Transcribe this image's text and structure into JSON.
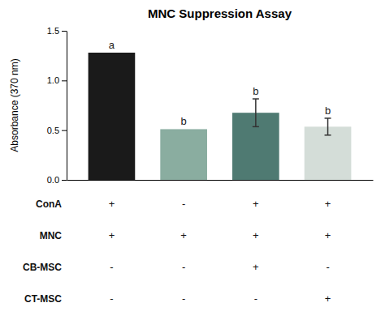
{
  "chart_data": {
    "type": "bar",
    "title": "MNC Suppression Assay",
    "ylabel": "Absorbance (370 nm)",
    "categories": [
      null,
      null,
      null,
      null
    ],
    "values": [
      1.28,
      0.51,
      0.675,
      0.535
    ],
    "errors": [
      0.0,
      0.0,
      0.14,
      0.085
    ],
    "colors": [
      "#1a1a1a",
      "#8aada0",
      "#4f7a72",
      "#d4ddd8"
    ],
    "annotations": [
      "a",
      "b",
      "b",
      "b"
    ],
    "ylim": [
      0,
      1.5
    ],
    "yticks": [
      {
        "value": 0.0,
        "label": "0.0"
      },
      0.5,
      {
        "value": 1.0,
        "label": "1.0"
      },
      1.5
    ],
    "grid": false,
    "table": {
      "rows": [
        "ConA",
        "MNC",
        "CB-MSC",
        "CT-MSC"
      ],
      "cells": [
        [
          "+",
          "-",
          "+",
          "+"
        ],
        [
          "+",
          "+",
          "+",
          "+"
        ],
        [
          "-",
          "-",
          "+",
          "-"
        ],
        [
          "-",
          "-",
          "-",
          "+"
        ]
      ]
    }
  }
}
